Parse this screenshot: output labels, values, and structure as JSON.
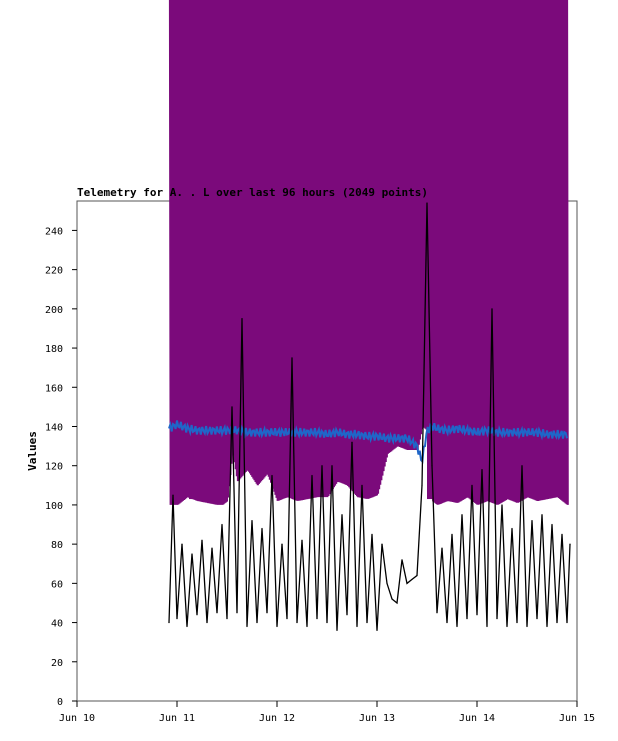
{
  "chart_data": {
    "type": "line",
    "title": "Telemetry for A. . L over last 96 hours (2049 points)",
    "ylabel": "Values",
    "xlabel": "",
    "xlim": [
      "Jun 10",
      "Jun 15"
    ],
    "ylim": [
      0,
      255
    ],
    "x_ticks": [
      "Jun 10",
      "Jun 11",
      "Jun 12",
      "Jun 13",
      "Jun 14",
      "Jun 15"
    ],
    "y_ticks": [
      0,
      20,
      40,
      60,
      80,
      100,
      120,
      140,
      160,
      180,
      200,
      220,
      240
    ],
    "grid": false,
    "legend": "none",
    "series": [
      {
        "color": "#7b0a7b",
        "style": "oscillating between ~100 and above 255 (clipped at top)",
        "x_day": [
          0.93,
          1.0,
          1.1,
          1.2,
          1.3,
          1.4,
          1.45,
          1.5,
          1.55,
          1.6,
          1.7,
          1.8,
          1.9,
          2.0,
          2.1,
          2.2,
          2.3,
          2.4,
          2.5,
          2.6,
          2.7,
          2.8,
          2.9,
          3.0,
          3.1,
          3.2,
          3.3,
          3.4,
          3.45,
          3.5,
          3.55,
          3.6,
          3.7,
          3.8,
          3.9,
          4.0,
          4.1,
          4.2,
          4.3,
          4.4,
          4.5,
          4.6,
          4.7,
          4.8,
          4.9
        ],
        "y_min": [
          100,
          100,
          104,
          102,
          101,
          100,
          100,
          102,
          128,
          112,
          118,
          110,
          116,
          102,
          104,
          102,
          103,
          104,
          104,
          112,
          110,
          104,
          103,
          105,
          126,
          130,
          128,
          128,
          140,
          138,
          102,
          100,
          102,
          101,
          104,
          100,
          102,
          100,
          103,
          101,
          104,
          102,
          103,
          104,
          100
        ]
      },
      {
        "color": "#1f66c8",
        "style": "fluctuating around ~136",
        "x_day": [
          0.92,
          1.0,
          1.1,
          1.2,
          1.3,
          1.4,
          1.5,
          1.6,
          1.7,
          1.8,
          1.9,
          2.0,
          2.1,
          2.2,
          2.3,
          2.4,
          2.5,
          2.6,
          2.7,
          2.8,
          2.9,
          3.0,
          3.1,
          3.2,
          3.3,
          3.4,
          3.45,
          3.5,
          3.55,
          3.6,
          3.7,
          3.8,
          3.9,
          4.0,
          4.1,
          4.2,
          4.3,
          4.4,
          4.5,
          4.6,
          4.7,
          4.8,
          4.9
        ],
        "y": [
          139,
          141,
          139,
          138,
          138,
          138,
          138,
          138,
          137,
          137,
          137,
          137,
          137,
          137,
          137,
          137,
          136,
          137,
          136,
          136,
          135,
          135,
          134,
          134,
          134,
          130,
          122,
          138,
          140,
          139,
          138,
          139,
          138,
          137,
          138,
          137,
          137,
          137,
          137,
          137,
          136,
          136,
          136
        ]
      },
      {
        "color": "#000000",
        "style": "baseline ~40 with spikes",
        "x_day": [
          0.92,
          0.96,
          1.0,
          1.05,
          1.1,
          1.15,
          1.2,
          1.25,
          1.3,
          1.35,
          1.4,
          1.45,
          1.5,
          1.55,
          1.6,
          1.65,
          1.7,
          1.75,
          1.8,
          1.85,
          1.9,
          1.95,
          2.0,
          2.05,
          2.1,
          2.15,
          2.2,
          2.25,
          2.3,
          2.35,
          2.4,
          2.45,
          2.5,
          2.55,
          2.6,
          2.65,
          2.7,
          2.75,
          2.8,
          2.85,
          2.9,
          2.95,
          3.0,
          3.05,
          3.1,
          3.15,
          3.2,
          3.25,
          3.3,
          3.35,
          3.4,
          3.45,
          3.5,
          3.55,
          3.6,
          3.65,
          3.7,
          3.75,
          3.8,
          3.85,
          3.9,
          3.95,
          4.0,
          4.05,
          4.1,
          4.15,
          4.2,
          4.25,
          4.3,
          4.35,
          4.4,
          4.45,
          4.5,
          4.55,
          4.6,
          4.65,
          4.7,
          4.75,
          4.8,
          4.85,
          4.9,
          4.93
        ],
        "y": [
          40,
          105,
          42,
          80,
          38,
          75,
          44,
          82,
          40,
          78,
          45,
          90,
          42,
          150,
          45,
          195,
          38,
          92,
          40,
          88,
          45,
          115,
          38,
          80,
          42,
          175,
          40,
          82,
          38,
          115,
          42,
          120,
          40,
          120,
          36,
          95,
          44,
          132,
          38,
          110,
          40,
          85,
          36,
          80,
          60,
          52,
          50,
          72,
          60,
          62,
          64,
          110,
          254,
          120,
          45,
          78,
          40,
          85,
          38,
          95,
          42,
          110,
          44,
          118,
          38,
          200,
          42,
          100,
          38,
          88,
          40,
          120,
          38,
          92,
          42,
          95,
          38,
          90,
          40,
          85,
          40,
          80
        ]
      }
    ]
  }
}
